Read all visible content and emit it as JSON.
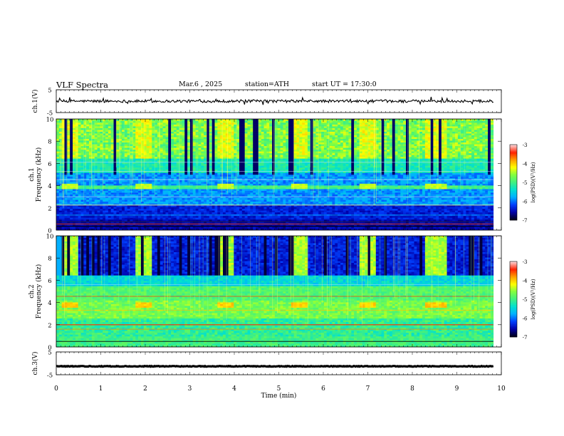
{
  "header": {
    "title": "VLF Spectra",
    "date": "Mar.6 , 2025",
    "station": "station=ATH",
    "start_ut": "start UT = 17:30:0"
  },
  "chart_data": {
    "type": "heatmap",
    "xlabel": "Time (min)",
    "x_ticks": [
      "0",
      "1",
      "2",
      "3",
      "4",
      "5",
      "6",
      "7",
      "8",
      "9",
      "10"
    ],
    "xlim": [
      0,
      10
    ],
    "data_end_min": 9.82,
    "panels": [
      {
        "type": "line",
        "ylabel": "ch.1(V)",
        "ylim": [
          -5,
          5
        ],
        "y_ticks": [
          "5",
          "-5"
        ],
        "series": [
          {
            "level_v": 0.0,
            "noise_v": 0.6,
            "spikes": true
          }
        ]
      },
      {
        "type": "heatmap",
        "ylabel": "ch.1\nFrequency (kHz)",
        "ylim": [
          0,
          10
        ],
        "y_ticks": [
          "10",
          "8",
          "6",
          "4",
          "2",
          "0"
        ],
        "colorbar": {
          "label": "log(PSD)(V²/Hz)",
          "range": [
            -7,
            -3
          ],
          "ticks": [
            "-3",
            "-4",
            "-5",
            "-6",
            "-7"
          ]
        },
        "tone_on_intervals_min": [
          [
            0.1,
            0.5
          ],
          [
            1.75,
            2.15
          ],
          [
            3.6,
            4.0
          ],
          [
            5.25,
            5.65
          ],
          [
            6.8,
            7.2
          ],
          [
            8.3,
            8.75
          ]
        ],
        "tone_band_khz": [
          3.75,
          4.15
        ],
        "quiet_intervals_min": [
          [
            0.5,
            1.75
          ],
          [
            2.15,
            3.6
          ],
          [
            4.0,
            5.25
          ],
          [
            5.65,
            6.8
          ],
          [
            7.2,
            8.3
          ],
          [
            8.75,
            9.82
          ]
        ]
      },
      {
        "type": "heatmap",
        "ylabel": "ch.2\nFrequency (kHz)",
        "ylim": [
          0,
          10
        ],
        "y_ticks": [
          "10",
          "8",
          "6",
          "4",
          "2",
          "0"
        ],
        "colorbar": {
          "label": "log(PSD)(V²/Hz)",
          "range": [
            -7,
            -3
          ],
          "ticks": [
            "-3",
            "-4",
            "-5",
            "-6",
            "-7"
          ]
        },
        "tone_on_intervals_min": [
          [
            0.1,
            0.5
          ],
          [
            1.75,
            2.15
          ],
          [
            3.6,
            4.0
          ],
          [
            5.25,
            5.65
          ],
          [
            6.8,
            7.2
          ],
          [
            8.3,
            8.75
          ]
        ],
        "tone_band_khz": [
          3.6,
          4.0
        ],
        "quiet_intervals_min": [
          [
            0.5,
            1.75
          ],
          [
            2.15,
            3.6
          ],
          [
            4.0,
            5.25
          ],
          [
            5.65,
            6.8
          ],
          [
            7.2,
            8.3
          ],
          [
            8.75,
            9.82
          ]
        ]
      },
      {
        "type": "line",
        "ylabel": "ch.3(V)",
        "ylim": [
          -5,
          5
        ],
        "y_ticks": [
          "5",
          "-5"
        ],
        "series": [
          {
            "level_v": -1.3,
            "noise_v": 0.15,
            "spikes": false
          }
        ]
      }
    ]
  },
  "colors": {
    "colormap": [
      "#000020",
      "#0000aa",
      "#0040ff",
      "#00b0ff",
      "#00e0d0",
      "#40f080",
      "#80ff40",
      "#ffff00",
      "#ffa000",
      "#ff2000",
      "#ffd0d0"
    ],
    "trace": "#000000"
  }
}
